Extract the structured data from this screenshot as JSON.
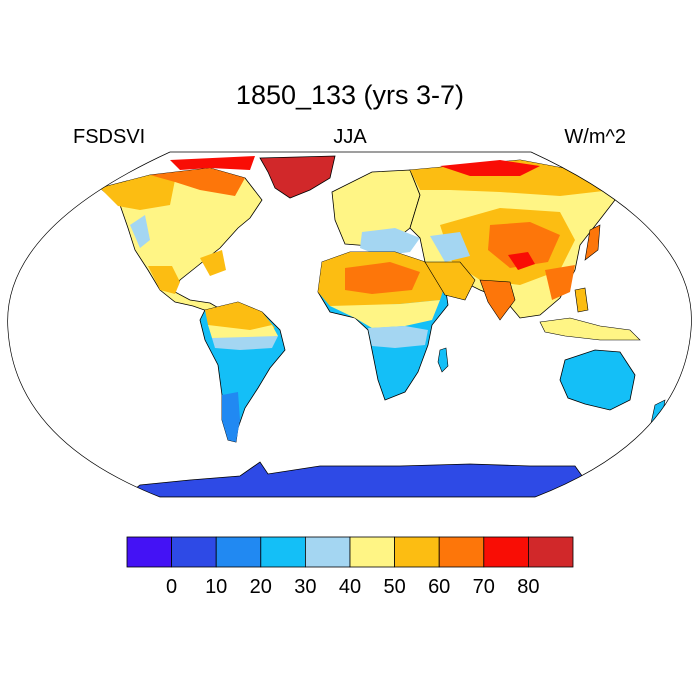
{
  "title": "1850_133 (yrs 3-7)",
  "left_label": "FSDSVI",
  "center_label": "JJA",
  "right_label": "W/m^2",
  "colorbar": {
    "colors": [
      "#4412f5",
      "#2e4ae6",
      "#2189f2",
      "#14bff7",
      "#a4d6f2",
      "#fff585",
      "#fcbd12",
      "#fd760a",
      "#f90d05",
      "#d1282a"
    ],
    "tick_labels": [
      "0",
      "10",
      "20",
      "30",
      "40",
      "50",
      "60",
      "70",
      "80"
    ]
  },
  "map": {
    "projection": "robinson",
    "ocean_color": "#ffffff",
    "outline_color": "#000000"
  }
}
